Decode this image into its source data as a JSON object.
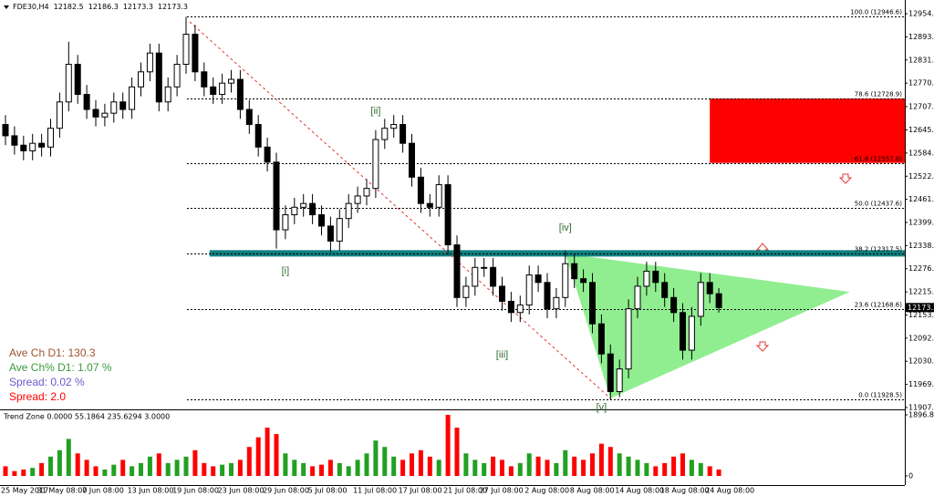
{
  "chart_data": [
    {
      "type": "candlestick",
      "symbol": "FDE30,H4",
      "header_values": [
        12182.5,
        12186.3,
        12173.3,
        12173.3
      ],
      "color": "#000000",
      "categories": [
        "25 May 2017",
        null,
        null,
        null,
        "31 May 08:00",
        null,
        null,
        null,
        null,
        "7 Jun 08:00",
        null,
        null,
        null,
        null,
        "13 Jun 08:00",
        null,
        null,
        null,
        null,
        "19 Jun 08:00",
        null,
        null,
        null,
        null,
        "23 Jun 08:00",
        null,
        null,
        null,
        null,
        "29 Jun 08:00",
        null,
        null,
        null,
        null,
        "5 Jul 08:00",
        null,
        null,
        null,
        null,
        "11 Jul 08:00",
        null,
        null,
        null,
        null,
        "17 Jul 08:00",
        null,
        null,
        null,
        null,
        "21 Jul 08:00",
        null,
        null,
        null,
        "27 Jul 08:00",
        null,
        null,
        null,
        null,
        "2 Aug 08:00",
        null,
        null,
        null,
        null,
        "8 Aug 08:00",
        null,
        null,
        null,
        null,
        "14 Aug 08:00",
        null,
        null,
        null,
        null,
        "18 Aug 08:00",
        null,
        null,
        null,
        null,
        "24 Aug 08:00",
        null
      ],
      "open": [
        12660,
        12630,
        12605,
        12590,
        12610,
        12600,
        12650,
        12720,
        12820,
        12740,
        12700,
        12680,
        12690,
        12720,
        12700,
        12760,
        12800,
        12850,
        12720,
        12760,
        12820,
        12900,
        12800,
        12760,
        12740,
        12770,
        12780,
        12700,
        12660,
        12600,
        12560,
        12380,
        12420,
        12440,
        12450,
        12420,
        12390,
        12350,
        12410,
        12450,
        12470,
        12490,
        12620,
        12650,
        12660,
        12610,
        12520,
        12450,
        12440,
        12500,
        12340,
        12200,
        12230,
        12280,
        12280,
        12230,
        12190,
        12160,
        12180,
        12260,
        12240,
        12170,
        12200,
        12290,
        12250,
        12240,
        12130,
        12050,
        11950,
        12010,
        12170,
        12230,
        12270,
        12240,
        12200,
        12160,
        12060,
        12150,
        12240,
        12210
      ],
      "high": [
        12685,
        12655,
        12630,
        12635,
        12635,
        12675,
        12745,
        12880,
        12845,
        12765,
        12725,
        12715,
        12745,
        12745,
        12785,
        12825,
        12875,
        12875,
        12785,
        12845,
        12946.6,
        12925,
        12825,
        12785,
        12795,
        12805,
        12805,
        12725,
        12685,
        12625,
        12585,
        12445,
        12465,
        12475,
        12475,
        12445,
        12415,
        12435,
        12475,
        12495,
        12515,
        12645,
        12675,
        12685,
        12685,
        12635,
        12545,
        12475,
        12525,
        12525,
        12365,
        12255,
        12305,
        12305,
        12305,
        12255,
        12215,
        12205,
        12285,
        12285,
        12265,
        12225,
        12325,
        12315,
        12275,
        12265,
        12155,
        12075,
        12035,
        12195,
        12255,
        12295,
        12295,
        12265,
        12225,
        12185,
        12175,
        12265,
        12265,
        12225
      ],
      "low": [
        12605,
        12580,
        12565,
        12565,
        12575,
        12575,
        12625,
        12695,
        12715,
        12675,
        12655,
        12655,
        12665,
        12675,
        12675,
        12735,
        12775,
        12695,
        12695,
        12735,
        12795,
        12775,
        12735,
        12715,
        12715,
        12745,
        12675,
        12635,
        12575,
        12535,
        12330,
        12355,
        12395,
        12415,
        12395,
        12365,
        12320,
        12325,
        12385,
        12425,
        12445,
        12465,
        12595,
        12625,
        12585,
        12495,
        12425,
        12415,
        12415,
        12315,
        12175,
        12175,
        12205,
        12255,
        12205,
        12165,
        12135,
        12135,
        12155,
        12215,
        12145,
        12145,
        12175,
        12225,
        12215,
        12105,
        12025,
        11928.5,
        11935,
        11985,
        12145,
        12205,
        12215,
        12175,
        12135,
        12035,
        12035,
        12125,
        12185,
        12160
      ],
      "close": [
        12630,
        12605,
        12590,
        12610,
        12600,
        12650,
        12720,
        12820,
        12740,
        12700,
        12680,
        12690,
        12720,
        12700,
        12760,
        12800,
        12850,
        12720,
        12760,
        12820,
        12900,
        12800,
        12760,
        12740,
        12770,
        12780,
        12700,
        12660,
        12600,
        12560,
        12380,
        12420,
        12440,
        12450,
        12420,
        12390,
        12350,
        12410,
        12450,
        12470,
        12490,
        12620,
        12650,
        12660,
        12610,
        12520,
        12450,
        12440,
        12500,
        12340,
        12200,
        12230,
        12280,
        12280,
        12230,
        12190,
        12160,
        12180,
        12260,
        12240,
        12170,
        12200,
        12290,
        12250,
        12240,
        12130,
        12050,
        11950,
        12010,
        12170,
        12230,
        12270,
        12240,
        12200,
        12160,
        12060,
        12150,
        12240,
        12210,
        12173.3
      ],
      "ylim": [
        11905,
        12991
      ],
      "yticks": [
        12954.5,
        {
          "value": 12893.0,
          "label": "12893.0"
        },
        12831.5,
        {
          "value": 12770.0,
          "label": "12770.0"
        },
        12707.5,
        12645.5,
        {
          "value": 12584.0,
          "label": "12584.0"
        },
        12522.5,
        {
          "value": 12461.0,
          "label": "12461.0"
        },
        12399.5,
        {
          "value": 12338.0,
          "label": "12338.0"
        },
        12276.5,
        {
          "value": 12215.0,
          "label": "12215.0"
        },
        12153.5,
        {
          "value": 12092.0,
          "label": "12092.0"
        },
        12030.5,
        {
          "value": 11969.0,
          "label": "11969.0"
        },
        11907.5
      ],
      "last_price": 12173.3,
      "fib_levels": [
        {
          "value": 12946.6,
          "label": "100.0 (12946.6)"
        },
        {
          "value": 12728.9,
          "label": "78.6 (12728.9)"
        },
        {
          "value": 12557.8,
          "label": "61.8 (12557.8)"
        },
        {
          "value": 12437.6,
          "label": "50.0 (12437.6)"
        },
        {
          "value": 12317.5,
          "label": "38.2 (12317.5)"
        },
        {
          "value": 12168.6,
          "label": "23.6 (12168.6)"
        },
        {
          "value": 11928.5,
          "label": "0.0 (11928.5)"
        }
      ],
      "zone": {
        "from_index": 78,
        "low": 12557.8,
        "high": 12728.9,
        "color": "#ff0000"
      },
      "support": {
        "from_index": 22.6,
        "price": 12317.5,
        "color": "#0f7f7f"
      },
      "triangle": {
        "points": [
          [
            62,
            12317
          ],
          [
            93.5,
            12215
          ],
          [
            67,
            11932
          ]
        ],
        "color": "#90ee90"
      },
      "trendline": {
        "points": [
          [
            20.4,
            12933
          ],
          [
            67,
            11932
          ]
        ],
        "color": "#e53935"
      },
      "waves": [
        {
          "label": "[i]",
          "index": 31,
          "price": 12269
        },
        {
          "label": "[ii]",
          "index": 41,
          "price": 12695
        },
        {
          "label": "[iii]",
          "index": 55,
          "price": 12046
        },
        {
          "label": "[iv]",
          "index": 62,
          "price": 12385
        },
        {
          "label": "[v]",
          "index": 66,
          "price": 11907
        }
      ],
      "info": [
        {
          "text": "Ave Ch D1: 130.3",
          "color": "#a0522d"
        },
        {
          "text": "Ave Ch% D1: 1.07 %",
          "color": "#3a9a3a"
        },
        {
          "text": "Spread: 0.02 %",
          "color": "#6a5acd"
        },
        {
          "text": "Spread: 2.0",
          "color": "#ff0000"
        }
      ]
    },
    {
      "type": "bar",
      "title": "Trend Zone 0.0000 55.1864 235.6294 3.0000",
      "up_color": "#22a022",
      "down_color": "#ff0000",
      "values": [
        300,
        150,
        200,
        250,
        400,
        600,
        800,
        1150,
        700,
        500,
        300,
        200,
        350,
        500,
        300,
        400,
        600,
        700,
        400,
        500,
        600,
        800,
        400,
        300,
        350,
        400,
        500,
        900,
        1200,
        1500,
        1300,
        700,
        500,
        400,
        300,
        350,
        500,
        400,
        300,
        500,
        700,
        1100,
        900,
        600,
        500,
        700,
        800,
        600,
        500,
        1896.8,
        1500,
        700,
        500,
        400,
        600,
        500,
        300,
        400,
        700,
        600,
        500,
        400,
        800,
        600,
        500,
        700,
        1000,
        900,
        700,
        600,
        500,
        400,
        300,
        400,
        600,
        700,
        500,
        400,
        300,
        200
      ],
      "ylim": [
        0,
        1896.8
      ],
      "yticks": [
        0,
        {
          "value": 1896.8,
          "label": "1896.8(%)"
        }
      ]
    }
  ]
}
